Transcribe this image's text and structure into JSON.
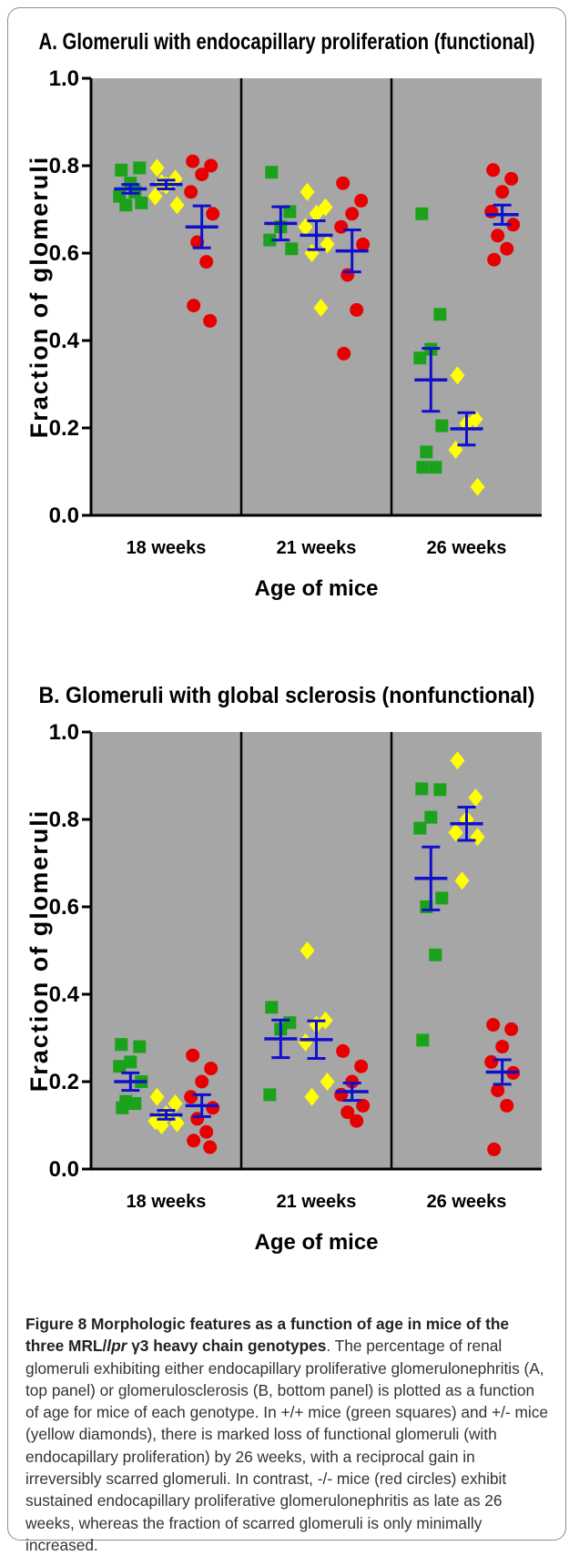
{
  "chart_data": [
    {
      "type": "scatter",
      "title": "A. Glomeruli with endocapillary proliferation (functional)",
      "xlabel": "Age of mice",
      "ylabel": "Fraction of glomeruli",
      "ylim": [
        0,
        1.0
      ],
      "yticks": [
        "0.0",
        "0.2",
        "0.4",
        "0.6",
        "0.8",
        "1.0"
      ],
      "categories": [
        "18 weeks",
        "21 weeks",
        "26 weeks"
      ],
      "grid": false,
      "series": [
        {
          "name": "+/+ mice (green squares)",
          "marker": "square",
          "color": "#1aa31a",
          "groups": [
            {
              "points": [
                0.79,
                0.795,
                0.76,
                0.73,
                0.715,
                0.71,
                0.74
              ],
              "mean": 0.747,
              "sem": 0.01
            },
            {
              "points": [
                0.785,
                0.695,
                0.66,
                0.63,
                0.61
              ],
              "mean": 0.668,
              "sem": 0.038
            },
            {
              "points": [
                0.69,
                0.46,
                0.38,
                0.36,
                0.205,
                0.145,
                0.11,
                0.11
              ],
              "mean": 0.31,
              "sem": 0.072
            }
          ]
        },
        {
          "name": "+/- mice (yellow diamonds)",
          "marker": "diamond",
          "color": "#ffff00",
          "groups": [
            {
              "points": [
                0.795,
                0.77,
                0.755,
                0.73,
                0.71,
                0.76
              ],
              "mean": 0.757,
              "sem": 0.01
            },
            {
              "points": [
                0.74,
                0.705,
                0.69,
                0.66,
                0.62,
                0.6,
                0.475
              ],
              "mean": 0.641,
              "sem": 0.033
            },
            {
              "points": [
                0.32,
                0.22,
                0.21,
                0.15,
                0.065
              ],
              "mean": 0.198,
              "sem": 0.037
            }
          ]
        },
        {
          "name": "-/- mice (red circles)",
          "marker": "circle",
          "color": "#e80000",
          "groups": [
            {
              "points": [
                0.81,
                0.8,
                0.78,
                0.74,
                0.69,
                0.625,
                0.58,
                0.48,
                0.445
              ],
              "mean": 0.66,
              "sem": 0.048
            },
            {
              "points": [
                0.76,
                0.72,
                0.69,
                0.66,
                0.62,
                0.55,
                0.47,
                0.37
              ],
              "mean": 0.605,
              "sem": 0.048
            },
            {
              "points": [
                0.79,
                0.77,
                0.74,
                0.695,
                0.665,
                0.64,
                0.61,
                0.585
              ],
              "mean": 0.688,
              "sem": 0.022
            }
          ]
        }
      ]
    },
    {
      "type": "scatter",
      "title": "B. Glomeruli with global sclerosis (nonfunctional)",
      "xlabel": "Age of mice",
      "ylabel": "Fraction of glomeruli",
      "ylim": [
        0,
        1.0
      ],
      "yticks": [
        "0.0",
        "0.2",
        "0.4",
        "0.6",
        "0.8",
        "1.0"
      ],
      "categories": [
        "18 weeks",
        "21 weeks",
        "26 weeks"
      ],
      "grid": false,
      "series": [
        {
          "name": "+/+ mice (green squares)",
          "marker": "square",
          "color": "#1aa31a",
          "groups": [
            {
              "points": [
                0.285,
                0.28,
                0.245,
                0.235,
                0.2,
                0.155,
                0.15,
                0.14
              ],
              "mean": 0.2,
              "sem": 0.02
            },
            {
              "points": [
                0.37,
                0.335,
                0.32,
                0.17
              ],
              "mean": 0.298,
              "sem": 0.043
            },
            {
              "points": [
                0.87,
                0.868,
                0.805,
                0.78,
                0.62,
                0.6,
                0.49,
                0.295
              ],
              "mean": 0.665,
              "sem": 0.072
            }
          ]
        },
        {
          "name": "+/- mice (yellow diamonds)",
          "marker": "diamond",
          "color": "#ffff00",
          "groups": [
            {
              "points": [
                0.165,
                0.15,
                0.125,
                0.11,
                0.105,
                0.1
              ],
              "mean": 0.124,
              "sem": 0.01
            },
            {
              "points": [
                0.5,
                0.34,
                0.33,
                0.29,
                0.2,
                0.165
              ],
              "mean": 0.296,
              "sem": 0.043
            },
            {
              "points": [
                0.935,
                0.85,
                0.8,
                0.77,
                0.76,
                0.66
              ],
              "mean": 0.79,
              "sem": 0.038
            }
          ]
        },
        {
          "name": "-/- mice (red circles)",
          "marker": "circle",
          "color": "#e80000",
          "groups": [
            {
              "points": [
                0.26,
                0.23,
                0.2,
                0.165,
                0.14,
                0.115,
                0.085,
                0.065,
                0.05
              ],
              "mean": 0.145,
              "sem": 0.025
            },
            {
              "points": [
                0.27,
                0.235,
                0.2,
                0.17,
                0.145,
                0.13,
                0.11
              ],
              "mean": 0.177,
              "sem": 0.02
            },
            {
              "points": [
                0.33,
                0.32,
                0.28,
                0.245,
                0.22,
                0.18,
                0.145,
                0.045
              ],
              "mean": 0.222,
              "sem": 0.028
            }
          ]
        }
      ]
    }
  ],
  "caption": {
    "title_before": "Figure 8 Morphologic features as a function of age in mice of the three MRL/",
    "title_italic": "lpr",
    "title_after": " γ3 heavy chain genotypes",
    "body": ". The percentage of renal glomeruli exhibiting either endocapillary proliferative glomerulonephritis (A, top panel) or glomerulosclerosis (B, bottom panel) is plotted as a function of age for mice of each genotype. In +/+ mice (green squares) and +/- mice (yellow diamonds), there is marked loss of functional glomeruli (with endocapillary proliferation) by 26 weeks, with a reciprocal gain in irreversibly scarred glomeruli. In contrast, -/- mice (red circles) exhibit sustained endocapillary proliferative glomerulonephritis as late as 26 weeks, whereas the fraction of scarred glomeruli is only minimally increased."
  },
  "style": {
    "plot_bg": "#a6a6a6",
    "mean_bar": "#1010cc",
    "axis": "#000000"
  }
}
